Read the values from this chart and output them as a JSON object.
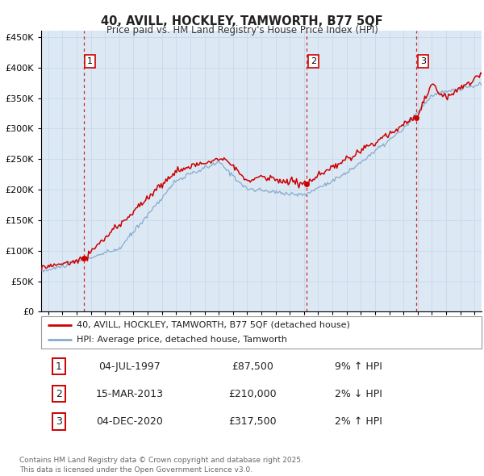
{
  "title": "40, AVILL, HOCKLEY, TAMWORTH, B77 5QF",
  "subtitle": "Price paid vs. HM Land Registry's House Price Index (HPI)",
  "background_color": "#dce9f5",
  "ylim": [
    0,
    460000
  ],
  "yticks": [
    0,
    50000,
    100000,
    150000,
    200000,
    250000,
    300000,
    350000,
    400000,
    450000
  ],
  "xlim_start": 1994.5,
  "xlim_end": 2025.5,
  "xticks": [
    1995,
    1996,
    1997,
    1998,
    1999,
    2000,
    2001,
    2002,
    2003,
    2004,
    2005,
    2006,
    2007,
    2008,
    2009,
    2010,
    2011,
    2012,
    2013,
    2014,
    2015,
    2016,
    2017,
    2018,
    2019,
    2020,
    2021,
    2022,
    2023,
    2024,
    2025
  ],
  "red_line_color": "#cc0000",
  "blue_line_color": "#88aacc",
  "grid_color": "#c8d8e8",
  "transactions": [
    {
      "num": 1,
      "x": 1997.5,
      "price": 87500,
      "date": "04-JUL-1997",
      "pct": "9%",
      "dir": "↑"
    },
    {
      "num": 2,
      "x": 2013.2,
      "price": 210000,
      "date": "15-MAR-2013",
      "pct": "2%",
      "dir": "↓"
    },
    {
      "num": 3,
      "x": 2020.92,
      "price": 317500,
      "date": "04-DEC-2020",
      "pct": "2%",
      "dir": "↑"
    }
  ],
  "legend_label_red": "40, AVILL, HOCKLEY, TAMWORTH, B77 5QF (detached house)",
  "legend_label_blue": "HPI: Average price, detached house, Tamworth",
  "footnote": "Contains HM Land Registry data © Crown copyright and database right 2025.\nThis data is licensed under the Open Government Licence v3.0."
}
